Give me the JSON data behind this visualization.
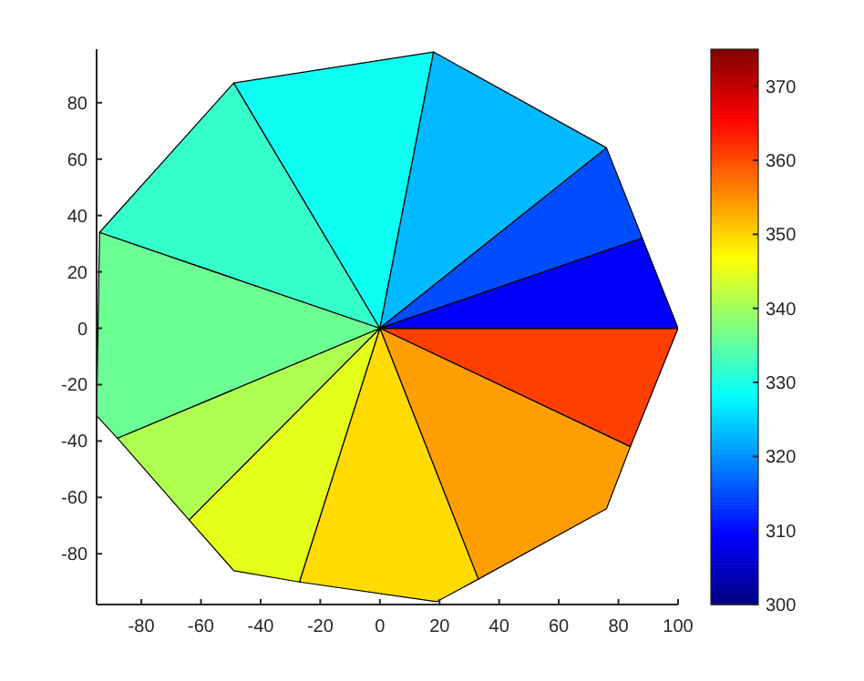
{
  "chart_data": {
    "type": "area",
    "xlim": [
      -95,
      100
    ],
    "ylim": [
      -98,
      99
    ],
    "xticks": [
      -80,
      -60,
      -40,
      -20,
      0,
      20,
      40,
      60,
      80,
      100
    ],
    "yticks": [
      -80,
      -60,
      -40,
      -20,
      0,
      20,
      40,
      60,
      80
    ],
    "clim": [
      300,
      375
    ],
    "cticks": [
      300,
      310,
      320,
      330,
      340,
      350,
      360,
      370
    ],
    "series": [
      {
        "x": [
          0,
          100,
          84
        ],
        "values": [
          0,
          0,
          -42
        ],
        "color": "#ff3f00"
      },
      {
        "x": [
          0,
          84,
          76,
          33
        ],
        "values": [
          0,
          -42,
          -64,
          -89
        ],
        "color": "#ff9e00"
      },
      {
        "x": [
          0,
          33,
          19,
          -27
        ],
        "values": [
          0,
          -89,
          -97,
          -90
        ],
        "color": "#ffdb00"
      },
      {
        "x": [
          0,
          -27,
          -49,
          -64
        ],
        "values": [
          0,
          -90,
          -86,
          -68
        ],
        "color": "#e6ff1a"
      },
      {
        "x": [
          0,
          -64,
          -88
        ],
        "values": [
          0,
          -68,
          -39
        ],
        "color": "#afff50"
      },
      {
        "x": [
          0,
          -88,
          -95,
          -94
        ],
        "values": [
          0,
          -39,
          -31,
          34
        ],
        "color": "#6bff94"
      },
      {
        "x": [
          0,
          -94,
          -49
        ],
        "values": [
          0,
          34,
          87
        ],
        "color": "#35ffca"
      },
      {
        "x": [
          0,
          -49,
          18
        ],
        "values": [
          0,
          87,
          98
        ],
        "color": "#0cfff3"
      },
      {
        "x": [
          0,
          18,
          76
        ],
        "values": [
          0,
          98,
          64
        ],
        "color": "#00b9ff"
      },
      {
        "x": [
          0,
          76,
          88
        ],
        "values": [
          0,
          64,
          32
        ],
        "color": "#004dff"
      },
      {
        "x": [
          0,
          88,
          100
        ],
        "values": [
          0,
          32,
          0
        ],
        "color": "#0000fa"
      }
    ]
  }
}
